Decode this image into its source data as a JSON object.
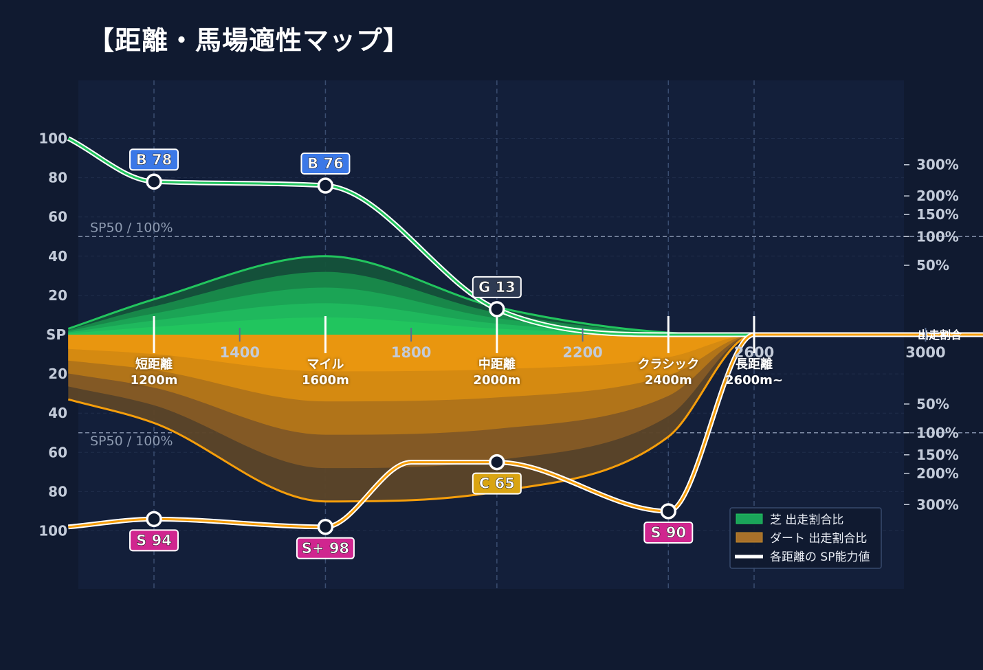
{
  "title": "【距離・馬場適性マップ】",
  "chart_data": {
    "type": "area",
    "x_ticks": [
      "1400",
      "1800",
      "2200",
      "2600",
      "3000"
    ],
    "x_tick_values": [
      1400,
      1800,
      2200,
      2600,
      3000
    ],
    "xlim": [
      1000,
      3200
    ],
    "left_axis_upper": [
      "100",
      "80",
      "60",
      "40",
      "20"
    ],
    "left_axis_upper_values": [
      100,
      80,
      60,
      40,
      20
    ],
    "left_axis_center": "SP",
    "left_axis_lower": [
      "20",
      "40",
      "60",
      "80",
      "100"
    ],
    "left_axis_lower_values": [
      20,
      40,
      60,
      80,
      100
    ],
    "right_axis_upper": [
      "300%",
      "200%",
      "150%",
      "100%",
      "50%"
    ],
    "right_axis_upper_values": [
      300,
      200,
      150,
      100,
      50
    ],
    "right_axis_center": "出走割合",
    "right_axis_lower": [
      "50%",
      "100%",
      "150%",
      "200%",
      "300%"
    ],
    "right_axis_lower_values": [
      50,
      100,
      150,
      200,
      300
    ],
    "reference_label_upper": "SP50 / 100%",
    "reference_label_lower": "SP50 / 100%",
    "reference_value": 50,
    "categories": [
      {
        "name": "短距離",
        "distance": "1200m",
        "x": 1200
      },
      {
        "name": "マイル",
        "distance": "1600m",
        "x": 1600
      },
      {
        "name": "中距離",
        "distance": "2000m",
        "x": 2000
      },
      {
        "name": "クラシック",
        "distance": "2400m",
        "x": 2400
      },
      {
        "name": "長距離",
        "distance": "2600m~",
        "x": 2600
      }
    ],
    "turf_sp": {
      "x": [
        1000,
        1200,
        1600,
        2000,
        2400,
        2600,
        3200
      ],
      "y": [
        100,
        78,
        76,
        13,
        0,
        0,
        0
      ],
      "labels": [
        {
          "x": 1200,
          "y": 78,
          "text": "B 78",
          "color": "#3b78e7"
        },
        {
          "x": 1600,
          "y": 76,
          "text": "B 76",
          "color": "#3b78e7"
        },
        {
          "x": 2000,
          "y": 13,
          "text": "G 13",
          "color": "#2e3a52"
        }
      ]
    },
    "dirt_sp": {
      "x": [
        1000,
        1200,
        1600,
        1800,
        2000,
        2400,
        2600,
        3200
      ],
      "y": [
        98,
        94,
        98,
        65,
        65,
        90,
        0,
        0
      ],
      "labels": [
        {
          "x": 1200,
          "y": 94,
          "text": "S 94",
          "color": "#d0268f"
        },
        {
          "x": 1600,
          "y": 98,
          "text": "S+ 98",
          "color": "#d0268f"
        },
        {
          "x": 2000,
          "y": 65,
          "text": "C 65",
          "color": "#d9a412"
        },
        {
          "x": 2400,
          "y": 90,
          "text": "S 90",
          "color": "#d0268f"
        }
      ]
    },
    "turf_share": {
      "x": [
        1000,
        1200,
        1600,
        2000,
        2400,
        2600,
        3200
      ],
      "y": [
        3,
        18,
        40,
        14,
        1,
        0,
        0
      ]
    },
    "dirt_share": {
      "x": [
        1000,
        1200,
        1600,
        2000,
        2400,
        2600,
        3200
      ],
      "y": [
        33,
        45,
        85,
        80,
        52,
        0,
        0
      ]
    },
    "legend": [
      {
        "label": "芝 出走割合比",
        "color": "#1aa55a"
      },
      {
        "label": "ダート 出走割合比",
        "color": "#a8702a"
      },
      {
        "label": "各距離の SP能力値",
        "color": "#ffffff"
      }
    ],
    "legend_position": "bottom-right",
    "colors": {
      "background": "#101a30",
      "plot_bg": "#131f3a",
      "turf_line": "#22c55e",
      "dirt_line": "#f59e0b",
      "grid": "#2a3a5a"
    },
    "grid": true
  }
}
